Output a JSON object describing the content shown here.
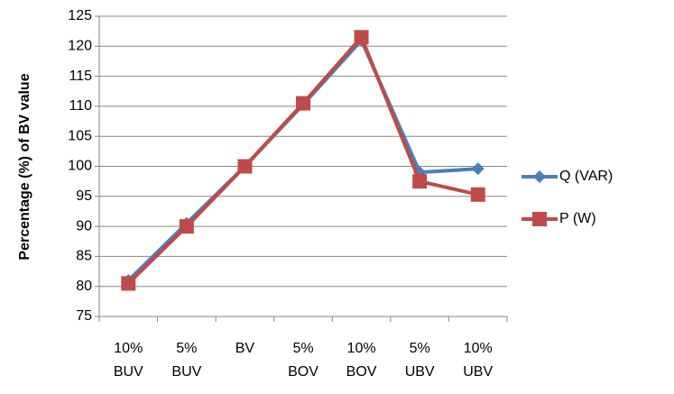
{
  "chart_data": {
    "type": "line",
    "y_label": "Percentage (%) of BV value",
    "categories": [
      "10% BUV",
      "5% BUV",
      "BV",
      "5% BOV",
      "10% BOV",
      "5% UBV",
      "10% UBV"
    ],
    "series": [
      {
        "name": "Q (VAR)",
        "color": "#4a7ebb",
        "marker": "diamond",
        "values": [
          81,
          90.5,
          100,
          110.3,
          121,
          99,
          99.6
        ]
      },
      {
        "name": "P (W)",
        "color": "#be4b48",
        "marker": "square",
        "values": [
          80.5,
          90,
          100,
          110.5,
          121.5,
          97.5,
          95.3
        ]
      }
    ],
    "ylim": [
      75,
      125
    ],
    "yticks": [
      75,
      80,
      85,
      90,
      95,
      100,
      105,
      110,
      115,
      120,
      125
    ],
    "grid": true,
    "legend": "right"
  }
}
